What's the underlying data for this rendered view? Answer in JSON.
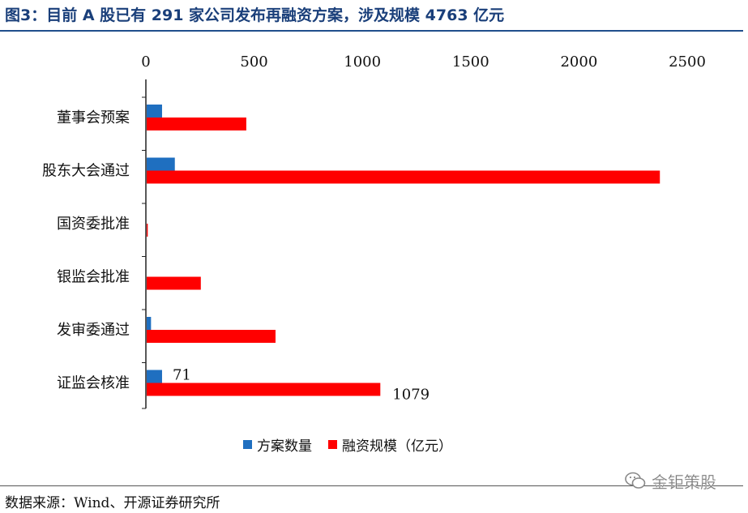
{
  "header": {
    "title": "图3：目前 A 股已有 291 家公司发布再融资方案，涉及规模 4763 亿元"
  },
  "footer": {
    "source": "数据来源：Wind、开源证券研究所",
    "watermark_text": "金钜策股"
  },
  "colors": {
    "title": "#1a3f7a",
    "rule": "#1f4e8c",
    "series_count": "#1f6fc0",
    "series_scale": "#ff0000"
  },
  "chart_data": {
    "type": "bar",
    "orientation": "horizontal",
    "categories": [
      "董事会预案",
      "股东大会通过",
      "国资委批准",
      "银监会批准",
      "发审委通过",
      "证监会核准"
    ],
    "series": [
      {
        "name": "方案数量",
        "values": [
          71,
          130,
          0,
          0,
          20,
          71
        ]
      },
      {
        "name": "融资规模（亿元）",
        "values": [
          460,
          2370,
          5,
          250,
          595,
          1079
        ]
      }
    ],
    "xlim": [
      0,
      2500
    ],
    "xticks": [
      0,
      500,
      1000,
      1500,
      2000,
      2500
    ],
    "xtick_labels": [
      "0",
      "500",
      "1000",
      "1500",
      "2000",
      "2500"
    ],
    "axis_position": "top",
    "data_labels": [
      {
        "series": 0,
        "category_index": 5,
        "text": "71"
      },
      {
        "series": 1,
        "category_index": 5,
        "text": "1079"
      }
    ],
    "grid": false,
    "legend_position": "bottom"
  }
}
